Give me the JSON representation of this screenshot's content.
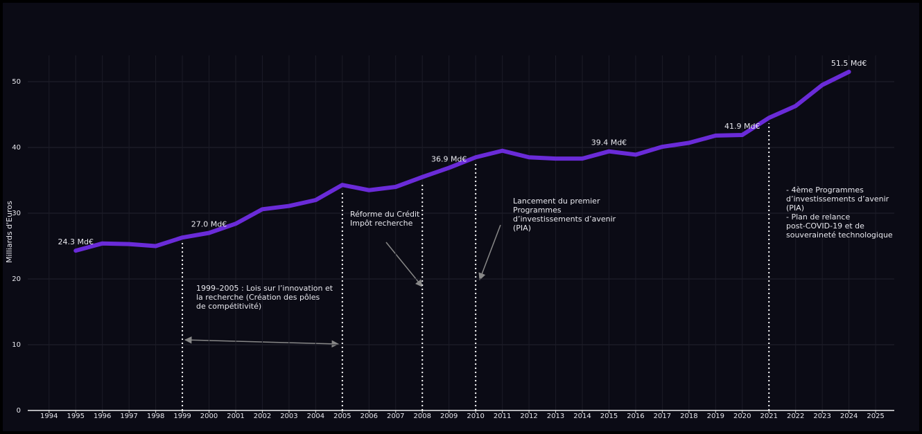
{
  "chart_data": {
    "type": "line",
    "y_label": "Milliards d'Euros",
    "x": [
      1995,
      1996,
      1997,
      1998,
      1999,
      2000,
      2001,
      2002,
      2003,
      2004,
      2005,
      2006,
      2007,
      2008,
      2009,
      2010,
      2011,
      2012,
      2013,
      2014,
      2015,
      2016,
      2017,
      2018,
      2019,
      2020,
      2021,
      2022,
      2023,
      2024
    ],
    "series": [
      {
        "color": "#6a2bd8",
        "values": [
          24.3,
          25.4,
          25.3,
          25.0,
          26.3,
          27.0,
          28.4,
          30.6,
          31.1,
          32.0,
          34.3,
          33.5,
          34.0,
          35.5,
          36.9,
          38.5,
          39.5,
          38.5,
          38.3,
          38.3,
          39.4,
          38.9,
          40.1,
          40.7,
          41.8,
          41.9,
          44.5,
          46.3,
          49.5,
          51.5
        ],
        "value_labels": [
          "24.3 Md€",
          null,
          null,
          null,
          null,
          "27.0 Md€",
          null,
          null,
          null,
          null,
          null,
          null,
          null,
          null,
          "36.9 Md€",
          null,
          null,
          null,
          null,
          null,
          "39.4 Md€",
          null,
          null,
          null,
          null,
          "41.9 Md€",
          null,
          null,
          null,
          "51.5 Md€"
        ]
      }
    ],
    "xlim": [
      1993.2,
      2025.7
    ],
    "ylim": [
      0,
      54
    ],
    "xticks": [
      1994,
      1995,
      1996,
      1997,
      1998,
      1999,
      2000,
      2001,
      2002,
      2003,
      2004,
      2005,
      2006,
      2007,
      2008,
      2009,
      2010,
      2011,
      2012,
      2013,
      2014,
      2015,
      2016,
      2017,
      2018,
      2019,
      2020,
      2021,
      2022,
      2023,
      2024,
      2025
    ],
    "yticks": [
      0,
      10,
      20,
      30,
      40,
      50
    ],
    "grid": true,
    "vlines": [
      1999,
      2005,
      2008,
      2010,
      2021
    ],
    "annotations": [
      {
        "lines": [
          "1999–2005 : Lois sur l’innovation et",
          "la recherche (Création des pôles",
          "de compétitivité)"
        ]
      },
      {
        "lines": [
          "Réforme du Crédit",
          "Impôt recherche"
        ]
      },
      {
        "lines": [
          "Lancement du premier",
          "Programmes",
          "d’investissements d’avenir",
          "(PIA)"
        ]
      },
      {
        "lines": [
          "- 4ème Programmes",
          "d’investissements d’avenir",
          "(PIA)",
          "- Plan de relance",
          "post-COVID-19 et de",
          "souveraineté technologique"
        ]
      }
    ]
  }
}
